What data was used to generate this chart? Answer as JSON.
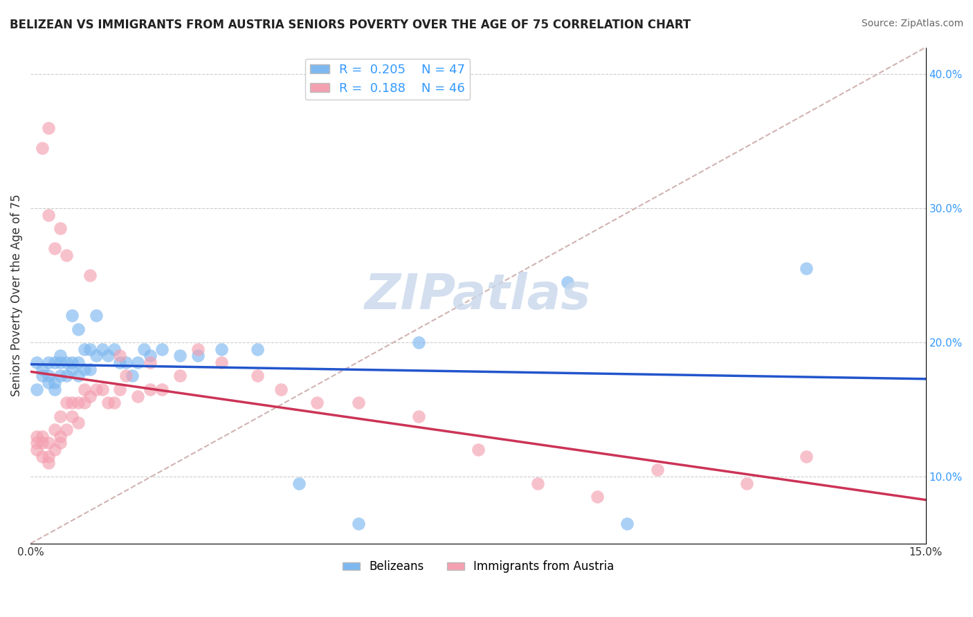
{
  "title": "BELIZEAN VS IMMIGRANTS FROM AUSTRIA SENIORS POVERTY OVER THE AGE OF 75 CORRELATION CHART",
  "source": "Source: ZipAtlas.com",
  "ylabel": "Seniors Poverty Over the Age of 75",
  "xlabel": "",
  "xlim": [
    0.0,
    0.15
  ],
  "ylim": [
    0.05,
    0.42
  ],
  "xticks": [
    0.0,
    0.03,
    0.06,
    0.09,
    0.12,
    0.15
  ],
  "xtick_labels": [
    "0.0%",
    "",
    "",
    "",
    "",
    "15.0%"
  ],
  "yticks_right": [
    0.1,
    0.2,
    0.3,
    0.4
  ],
  "ytick_labels_right": [
    "10.0%",
    "20.0%",
    "30.0%",
    "40.0%"
  ],
  "legend_r1": "0.205",
  "legend_n1": "47",
  "legend_r2": "0.188",
  "legend_n2": "46",
  "belizean_color": "#7EB8F0",
  "austria_color": "#F4A0B0",
  "trend_blue": "#2255CC",
  "trend_pink": "#CC3355",
  "ref_line_color": "#CCAAAA",
  "watermark": "ZIPatlas",
  "watermark_color": "#C8D8EC",
  "background_color": "#FFFFFF",
  "belizean_x": [
    0.001,
    0.001,
    0.002,
    0.002,
    0.003,
    0.003,
    0.003,
    0.004,
    0.004,
    0.004,
    0.005,
    0.005,
    0.005,
    0.006,
    0.006,
    0.007,
    0.007,
    0.007,
    0.008,
    0.008,
    0.008,
    0.009,
    0.009,
    0.01,
    0.01,
    0.011,
    0.011,
    0.012,
    0.013,
    0.014,
    0.015,
    0.016,
    0.017,
    0.018,
    0.019,
    0.02,
    0.022,
    0.025,
    0.028,
    0.032,
    0.038,
    0.045,
    0.055,
    0.065,
    0.09,
    0.1,
    0.13
  ],
  "belizean_y": [
    0.165,
    0.185,
    0.175,
    0.18,
    0.17,
    0.175,
    0.185,
    0.165,
    0.17,
    0.185,
    0.175,
    0.185,
    0.19,
    0.175,
    0.185,
    0.18,
    0.185,
    0.22,
    0.175,
    0.185,
    0.21,
    0.18,
    0.195,
    0.18,
    0.195,
    0.19,
    0.22,
    0.195,
    0.19,
    0.195,
    0.185,
    0.185,
    0.175,
    0.185,
    0.195,
    0.19,
    0.195,
    0.19,
    0.19,
    0.195,
    0.195,
    0.095,
    0.065,
    0.2,
    0.245,
    0.065,
    0.255
  ],
  "austria_x": [
    0.001,
    0.001,
    0.001,
    0.002,
    0.002,
    0.002,
    0.003,
    0.003,
    0.003,
    0.004,
    0.004,
    0.005,
    0.005,
    0.005,
    0.006,
    0.006,
    0.007,
    0.007,
    0.008,
    0.008,
    0.009,
    0.009,
    0.01,
    0.011,
    0.012,
    0.013,
    0.014,
    0.015,
    0.016,
    0.018,
    0.02,
    0.022,
    0.025,
    0.028,
    0.032,
    0.038,
    0.042,
    0.048,
    0.055,
    0.065,
    0.075,
    0.085,
    0.095,
    0.105,
    0.12,
    0.13
  ],
  "austria_y": [
    0.12,
    0.125,
    0.13,
    0.115,
    0.125,
    0.13,
    0.11,
    0.115,
    0.125,
    0.12,
    0.135,
    0.145,
    0.125,
    0.13,
    0.155,
    0.135,
    0.145,
    0.155,
    0.155,
    0.14,
    0.165,
    0.155,
    0.16,
    0.165,
    0.165,
    0.155,
    0.155,
    0.165,
    0.175,
    0.16,
    0.165,
    0.165,
    0.175,
    0.195,
    0.185,
    0.175,
    0.165,
    0.155,
    0.155,
    0.145,
    0.12,
    0.095,
    0.085,
    0.105,
    0.095,
    0.115
  ],
  "austria_outliers_x": [
    0.002,
    0.003,
    0.003,
    0.004,
    0.005,
    0.006,
    0.01,
    0.015,
    0.02
  ],
  "austria_outliers_y": [
    0.345,
    0.36,
    0.295,
    0.27,
    0.285,
    0.265,
    0.25,
    0.19,
    0.185
  ]
}
